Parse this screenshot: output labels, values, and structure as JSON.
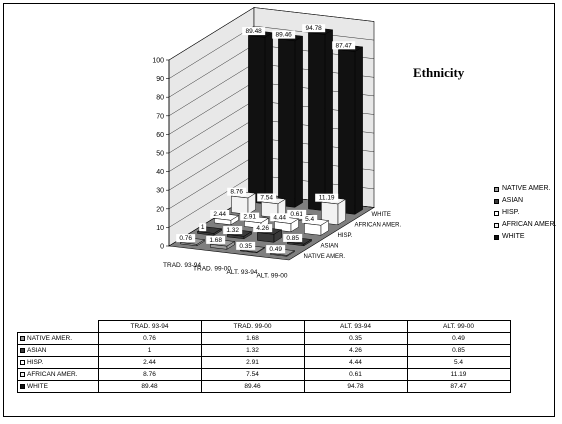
{
  "chart_data": {
    "type": "bar",
    "title": "Ethnicity",
    "categories": [
      "TRAD. 93-94",
      "TRAD. 99-00",
      "ALT. 93-94",
      "ALT. 99-00"
    ],
    "series": [
      {
        "name": "NATIVE AMER.",
        "values": [
          0.76,
          1.68,
          0.35,
          0.49
        ],
        "color": "#9a9a9a"
      },
      {
        "name": "ASIAN",
        "values": [
          1,
          1.32,
          4.26,
          0.85
        ],
        "color": "#3a3a3a"
      },
      {
        "name": "HISP.",
        "values": [
          2.44,
          2.91,
          4.44,
          5.4
        ],
        "color": "#ffffff"
      },
      {
        "name": "AFRICAN AMER.",
        "values": [
          8.76,
          7.54,
          0.61,
          11.19
        ],
        "color": "#f2f2f2"
      },
      {
        "name": "WHITE",
        "values": [
          89.48,
          89.46,
          94.78,
          87.47
        ],
        "color": "#111111"
      }
    ],
    "ylim": [
      0,
      100
    ],
    "yticks": [
      0,
      10,
      20,
      30,
      40,
      50,
      60,
      70,
      80,
      90,
      100
    ],
    "grid": true,
    "legend": "right",
    "table": true
  }
}
